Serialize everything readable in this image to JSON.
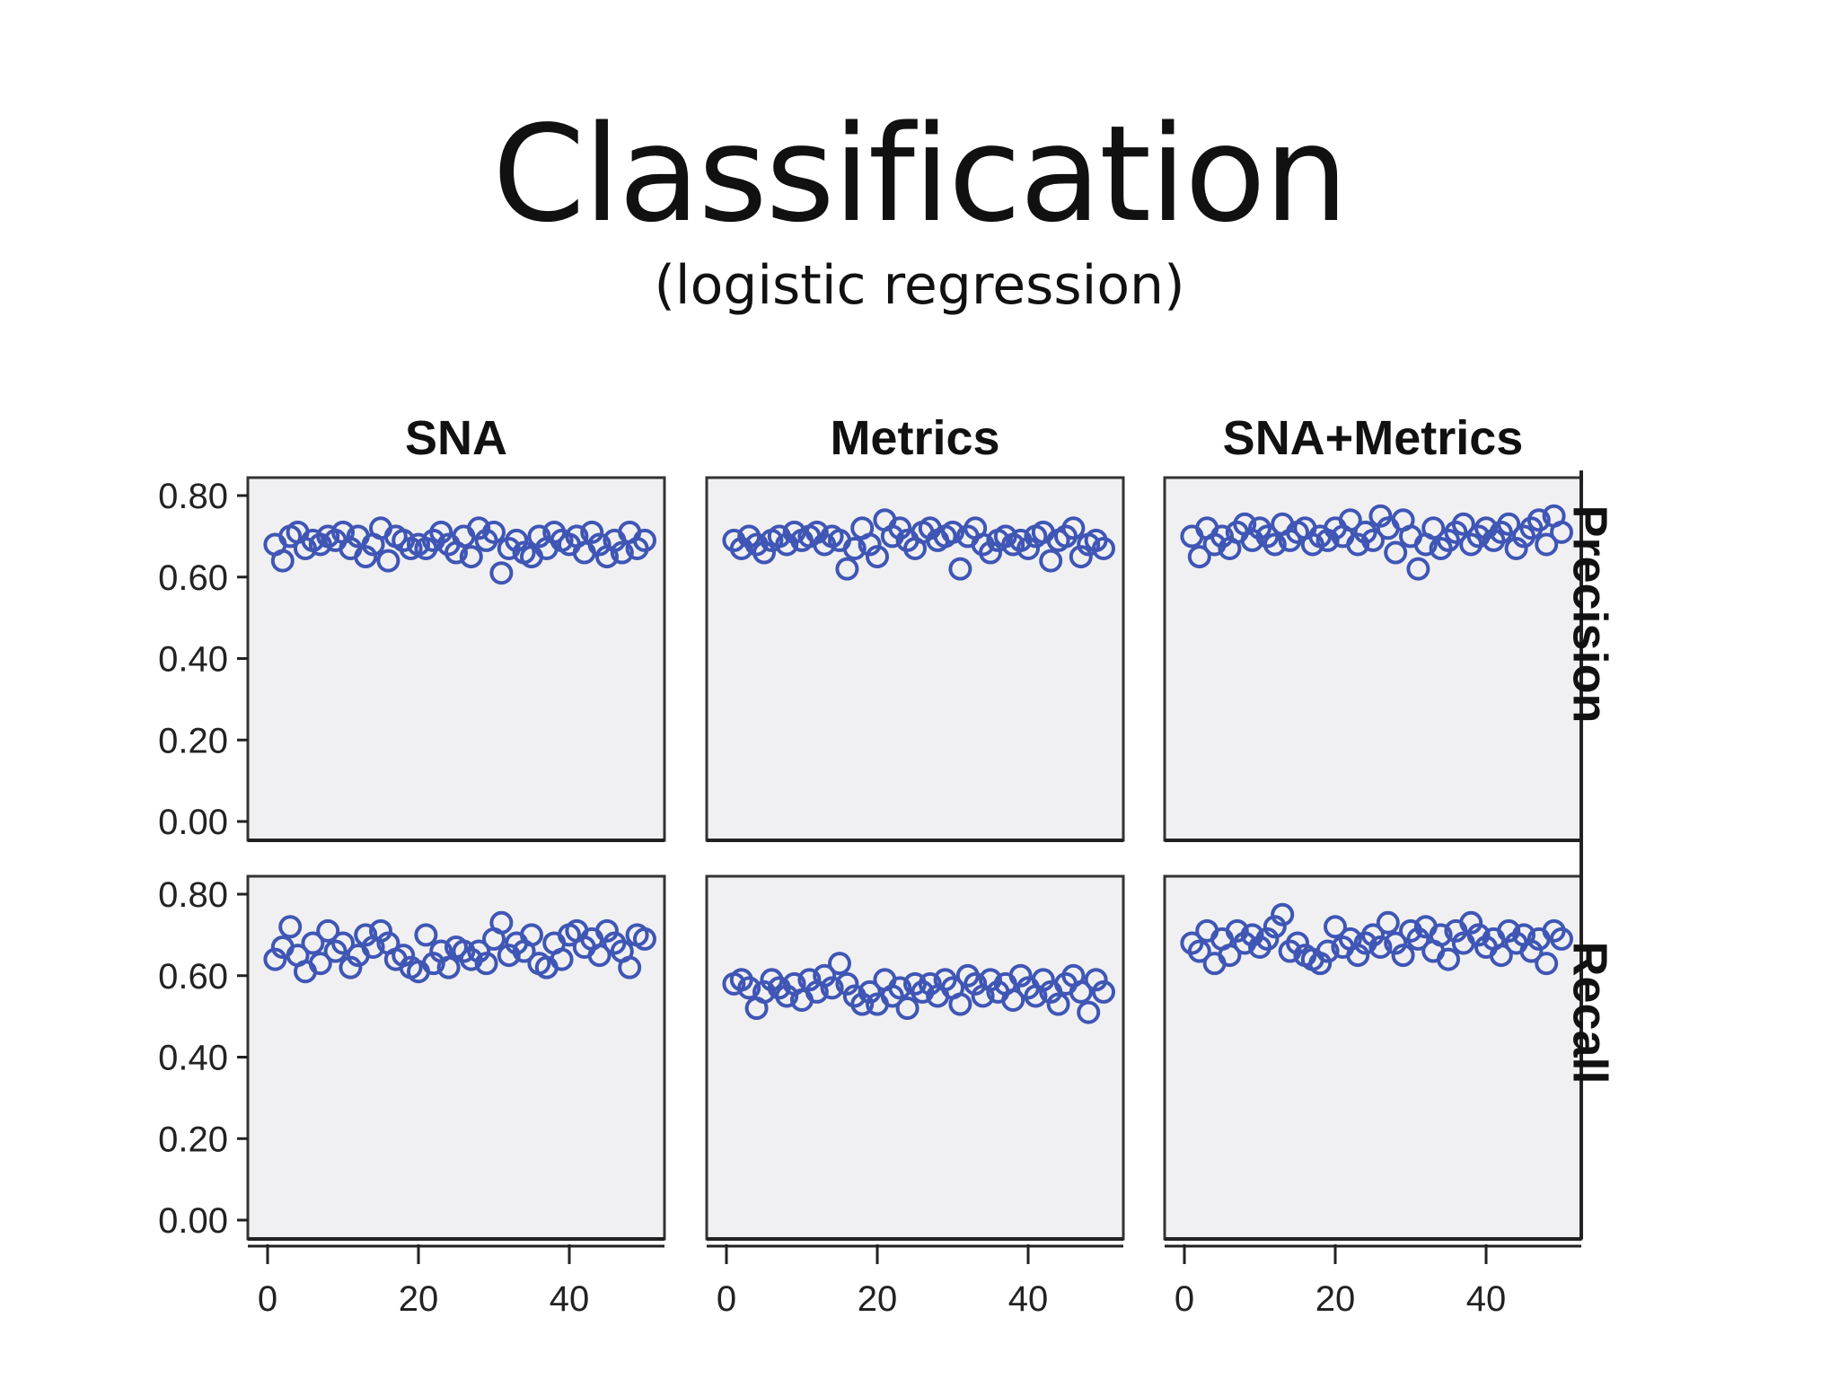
{
  "slide": {
    "title": "Classification",
    "subtitle": "(logistic regression)"
  },
  "colors": {
    "point": "#3f56b5",
    "panel_bg": "#f0f0f2"
  },
  "chart_data": {
    "type": "scatter",
    "layout": "facet-grid 2x3",
    "columns": [
      "SNA",
      "Metrics",
      "SNA+Metrics"
    ],
    "rows": [
      "Precision",
      "Recall"
    ],
    "ylim": [
      0,
      0.8
    ],
    "yticks": [
      "0.00",
      "0.20",
      "0.40",
      "0.60",
      "0.80"
    ],
    "xlim": [
      0,
      51
    ],
    "xticks": [
      "0",
      "20",
      "40"
    ],
    "grid": false,
    "x": [
      1,
      2,
      3,
      4,
      5,
      6,
      7,
      8,
      9,
      10,
      11,
      12,
      13,
      14,
      15,
      16,
      17,
      18,
      19,
      20,
      21,
      22,
      23,
      24,
      25,
      26,
      27,
      28,
      29,
      30,
      31,
      32,
      33,
      34,
      35,
      36,
      37,
      38,
      39,
      40,
      41,
      42,
      43,
      44,
      45,
      46,
      47,
      48,
      49,
      50
    ],
    "panels": [
      {
        "column": "SNA",
        "row": "Precision",
        "y": [
          0.68,
          0.64,
          0.7,
          0.71,
          0.67,
          0.69,
          0.68,
          0.7,
          0.69,
          0.71,
          0.67,
          0.7,
          0.65,
          0.68,
          0.72,
          0.64,
          0.7,
          0.69,
          0.67,
          0.68,
          0.67,
          0.69,
          0.71,
          0.68,
          0.66,
          0.7,
          0.65,
          0.72,
          0.69,
          0.71,
          0.61,
          0.67,
          0.69,
          0.66,
          0.65,
          0.7,
          0.67,
          0.71,
          0.69,
          0.68,
          0.7,
          0.66,
          0.71,
          0.68,
          0.65,
          0.69,
          0.66,
          0.71,
          0.67,
          0.69
        ]
      },
      {
        "column": "Metrics",
        "row": "Precision",
        "y": [
          0.69,
          0.67,
          0.7,
          0.68,
          0.66,
          0.69,
          0.7,
          0.68,
          0.71,
          0.69,
          0.7,
          0.71,
          0.68,
          0.7,
          0.69,
          0.62,
          0.67,
          0.72,
          0.68,
          0.65,
          0.74,
          0.7,
          0.72,
          0.69,
          0.67,
          0.71,
          0.72,
          0.69,
          0.7,
          0.71,
          0.62,
          0.7,
          0.72,
          0.68,
          0.66,
          0.69,
          0.7,
          0.68,
          0.69,
          0.67,
          0.7,
          0.71,
          0.64,
          0.69,
          0.7,
          0.72,
          0.65,
          0.68,
          0.69,
          0.67
        ]
      },
      {
        "column": "SNA+Metrics",
        "row": "Precision",
        "y": [
          0.7,
          0.65,
          0.72,
          0.68,
          0.7,
          0.67,
          0.71,
          0.73,
          0.69,
          0.72,
          0.7,
          0.68,
          0.73,
          0.69,
          0.71,
          0.72,
          0.68,
          0.7,
          0.69,
          0.72,
          0.7,
          0.74,
          0.68,
          0.71,
          0.69,
          0.75,
          0.72,
          0.66,
          0.74,
          0.7,
          0.62,
          0.68,
          0.72,
          0.67,
          0.69,
          0.71,
          0.73,
          0.68,
          0.7,
          0.72,
          0.69,
          0.71,
          0.73,
          0.67,
          0.7,
          0.72,
          0.74,
          0.68,
          0.75,
          0.71
        ]
      },
      {
        "column": "SNA",
        "row": "Recall",
        "y": [
          0.64,
          0.67,
          0.72,
          0.65,
          0.61,
          0.68,
          0.63,
          0.71,
          0.66,
          0.68,
          0.62,
          0.65,
          0.7,
          0.67,
          0.71,
          0.68,
          0.64,
          0.65,
          0.62,
          0.61,
          0.7,
          0.63,
          0.66,
          0.62,
          0.67,
          0.66,
          0.64,
          0.66,
          0.63,
          0.69,
          0.73,
          0.65,
          0.68,
          0.66,
          0.7,
          0.63,
          0.62,
          0.68,
          0.64,
          0.7,
          0.71,
          0.67,
          0.69,
          0.65,
          0.71,
          0.68,
          0.66,
          0.62,
          0.7,
          0.69
        ]
      },
      {
        "column": "Metrics",
        "row": "Recall",
        "y": [
          0.58,
          0.59,
          0.57,
          0.52,
          0.56,
          0.59,
          0.57,
          0.55,
          0.58,
          0.54,
          0.59,
          0.56,
          0.6,
          0.57,
          0.63,
          0.58,
          0.55,
          0.53,
          0.56,
          0.53,
          0.59,
          0.55,
          0.57,
          0.52,
          0.58,
          0.56,
          0.58,
          0.55,
          0.59,
          0.57,
          0.53,
          0.6,
          0.58,
          0.55,
          0.59,
          0.56,
          0.58,
          0.54,
          0.6,
          0.57,
          0.55,
          0.59,
          0.56,
          0.53,
          0.58,
          0.6,
          0.56,
          0.51,
          0.59,
          0.56
        ]
      },
      {
        "column": "SNA+Metrics",
        "row": "Recall",
        "y": [
          0.68,
          0.66,
          0.71,
          0.63,
          0.69,
          0.65,
          0.71,
          0.68,
          0.7,
          0.67,
          0.69,
          0.72,
          0.75,
          0.66,
          0.68,
          0.65,
          0.64,
          0.63,
          0.66,
          0.72,
          0.67,
          0.69,
          0.65,
          0.68,
          0.7,
          0.67,
          0.73,
          0.68,
          0.65,
          0.71,
          0.69,
          0.72,
          0.66,
          0.7,
          0.64,
          0.71,
          0.68,
          0.73,
          0.7,
          0.67,
          0.69,
          0.65,
          0.71,
          0.68,
          0.7,
          0.66,
          0.69,
          0.63,
          0.71,
          0.69
        ]
      }
    ]
  }
}
